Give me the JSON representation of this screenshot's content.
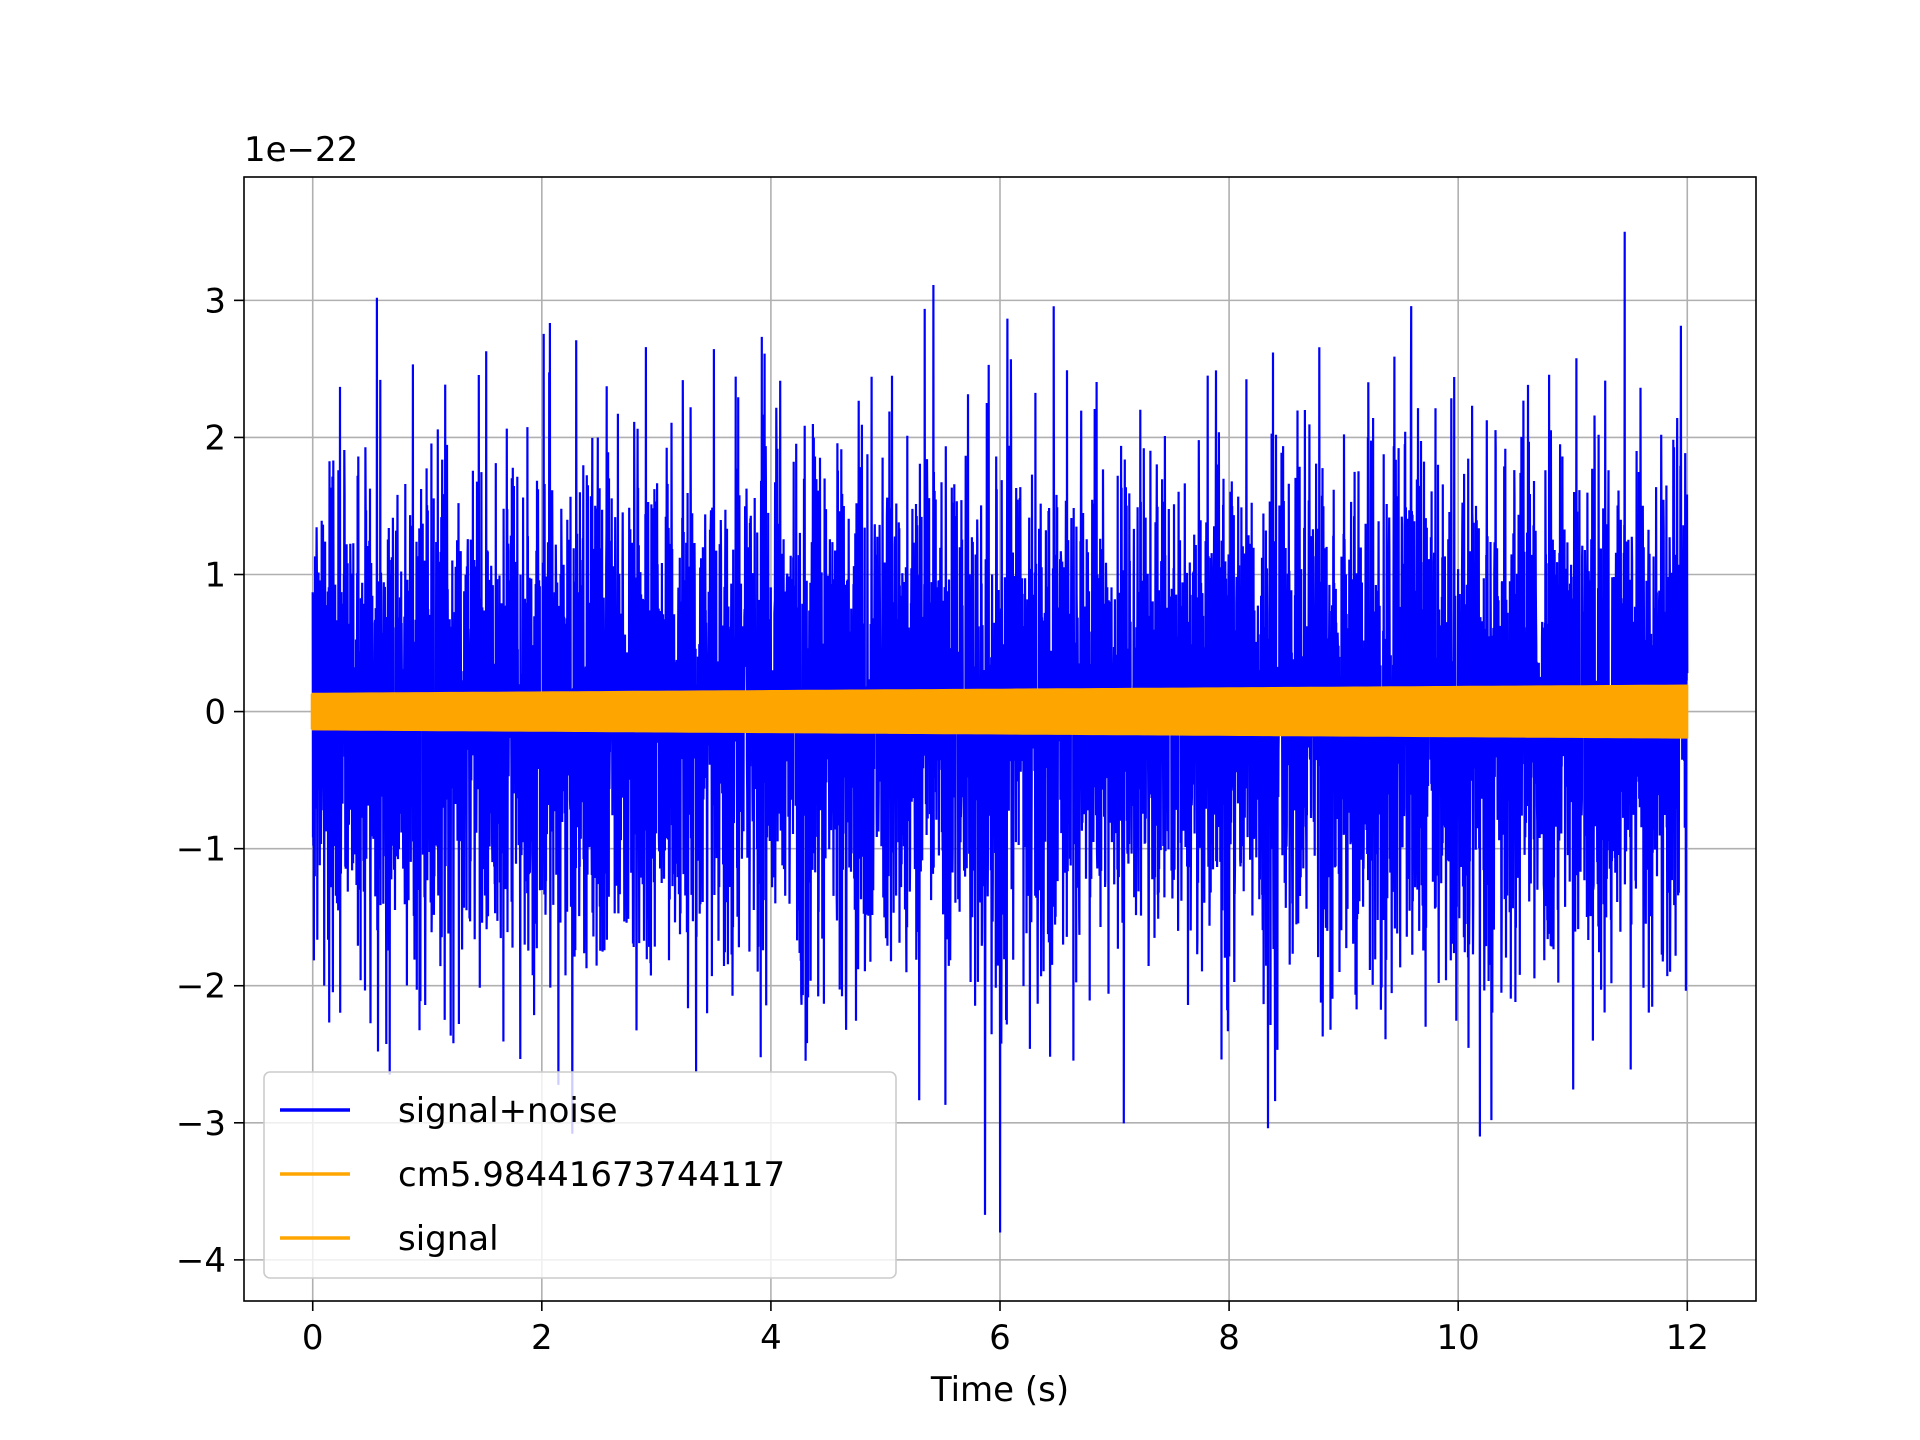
{
  "chart_data": {
    "type": "line",
    "title": "",
    "xlabel": "Time (s)",
    "ylabel": "",
    "offset_text": "1e−22",
    "xlim": [
      -0.6,
      12.6
    ],
    "ylim": [
      -4.3,
      3.9
    ],
    "x_ticks": [
      0,
      2,
      4,
      6,
      8,
      10,
      12
    ],
    "x_tick_labels": [
      "0",
      "2",
      "4",
      "6",
      "8",
      "10",
      "12"
    ],
    "y_ticks": [
      -4,
      -3,
      -2,
      -1,
      0,
      1,
      2,
      3
    ],
    "y_tick_labels": [
      "−4",
      "−3",
      "−2",
      "−1",
      "0",
      "1",
      "2",
      "3"
    ],
    "grid": true,
    "legend_position": "lower-left",
    "series": [
      {
        "name": "signal+noise",
        "color": "#0000ff",
        "description": "noise-dominated time series",
        "x_range": [
          0,
          12
        ],
        "typical_envelope": [
          -1.5,
          1.5
        ],
        "extremes": {
          "max": 3.55,
          "min": -3.8
        }
      },
      {
        "name": "cm5.98441673744117",
        "color": "#ffa500",
        "x_range": [
          0,
          12
        ],
        "amplitude_start": 0.13,
        "amplitude_end": 0.19
      },
      {
        "name": "signal",
        "color": "#ffa500",
        "x_range": [
          0,
          12
        ],
        "amplitude_start": 0.13,
        "amplitude_end": 0.19
      }
    ]
  }
}
